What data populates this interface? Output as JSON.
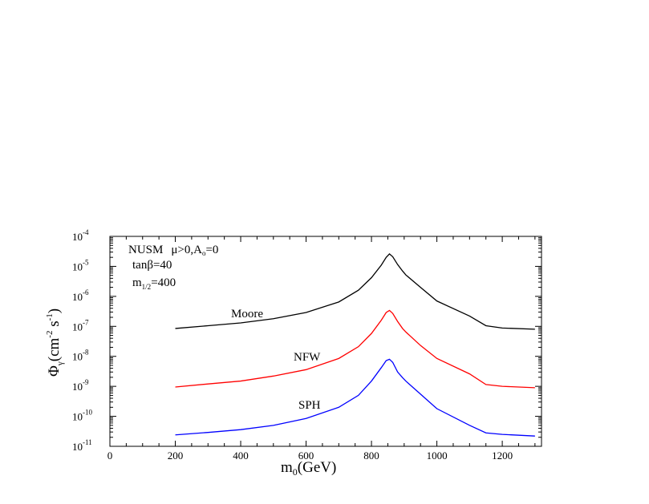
{
  "chart_data": {
    "type": "line",
    "xlabel": {
      "main": "m",
      "sub": "0",
      "rest": "(GeV)"
    },
    "ylabel": {
      "phi": "Φ",
      "sub": "γ",
      "open": "(cm",
      "exp1": "-2",
      "mid": " s",
      "exp2": "-1",
      "close": ")"
    },
    "xlim": [
      0,
      1320
    ],
    "ylim_log10": [
      -11,
      -4
    ],
    "y_scale": "log",
    "x_ticks": [
      0,
      200,
      400,
      600,
      800,
      1000,
      1200
    ],
    "y_tick_exponents": [
      -11,
      -10,
      -9,
      -8,
      -7,
      -6,
      -5,
      -4
    ],
    "y_tick_base": "10",
    "annotations": {
      "model": "NUSM",
      "conditions": "μ>0,A",
      "a0_sub": "o",
      "a0_val": "=0",
      "tanbeta": "tanβ=40",
      "m_half_main": "m",
      "m_half_sub": "1/2",
      "m_half_val": "=400"
    },
    "series": [
      {
        "name": "Moore",
        "color": "#000000",
        "x": [
          200,
          300,
          400,
          500,
          600,
          700,
          760,
          800,
          830,
          845,
          855,
          865,
          880,
          895,
          905,
          950,
          1000,
          1100,
          1150,
          1200,
          1300
        ],
        "y": [
          8.5e-08,
          1.05e-07,
          1.3e-07,
          1.8e-07,
          2.9e-07,
          6.5e-07,
          1.6e-06,
          4.2e-06,
          1.1e-05,
          2e-05,
          2.6e-05,
          2.1e-05,
          1.15e-05,
          7e-06,
          5.2e-06,
          2e-06,
          7e-07,
          2.2e-07,
          1.05e-07,
          8.8e-08,
          8e-08
        ]
      },
      {
        "name": "NFW",
        "color": "#ff0000",
        "x": [
          200,
          300,
          400,
          500,
          600,
          700,
          760,
          800,
          830,
          845,
          855,
          865,
          880,
          895,
          905,
          950,
          1000,
          1100,
          1150,
          1200,
          1300
        ],
        "y": [
          9.5e-10,
          1.2e-09,
          1.5e-09,
          2.2e-09,
          3.6e-09,
          8.5e-09,
          2.1e-08,
          5.8e-08,
          1.6e-07,
          2.9e-07,
          3.4e-07,
          2.7e-07,
          1.45e-07,
          8.5e-08,
          6.5e-08,
          2.3e-08,
          8.5e-09,
          2.6e-09,
          1.15e-09,
          1e-09,
          9e-10
        ]
      },
      {
        "name": "SPH",
        "color": "#0000ff",
        "x": [
          200,
          300,
          400,
          500,
          600,
          700,
          760,
          800,
          830,
          845,
          855,
          865,
          880,
          895,
          905,
          950,
          1000,
          1100,
          1150,
          1200,
          1300
        ],
        "y": [
          2.4e-11,
          2.9e-11,
          3.6e-11,
          5e-11,
          8.5e-11,
          2e-10,
          5e-10,
          1.5e-09,
          4.2e-09,
          7.2e-09,
          8e-09,
          6.3e-09,
          3e-09,
          1.95e-09,
          1.5e-09,
          5.5e-10,
          1.8e-10,
          5e-11,
          2.8e-11,
          2.5e-11,
          2.2e-11
        ]
      }
    ]
  }
}
